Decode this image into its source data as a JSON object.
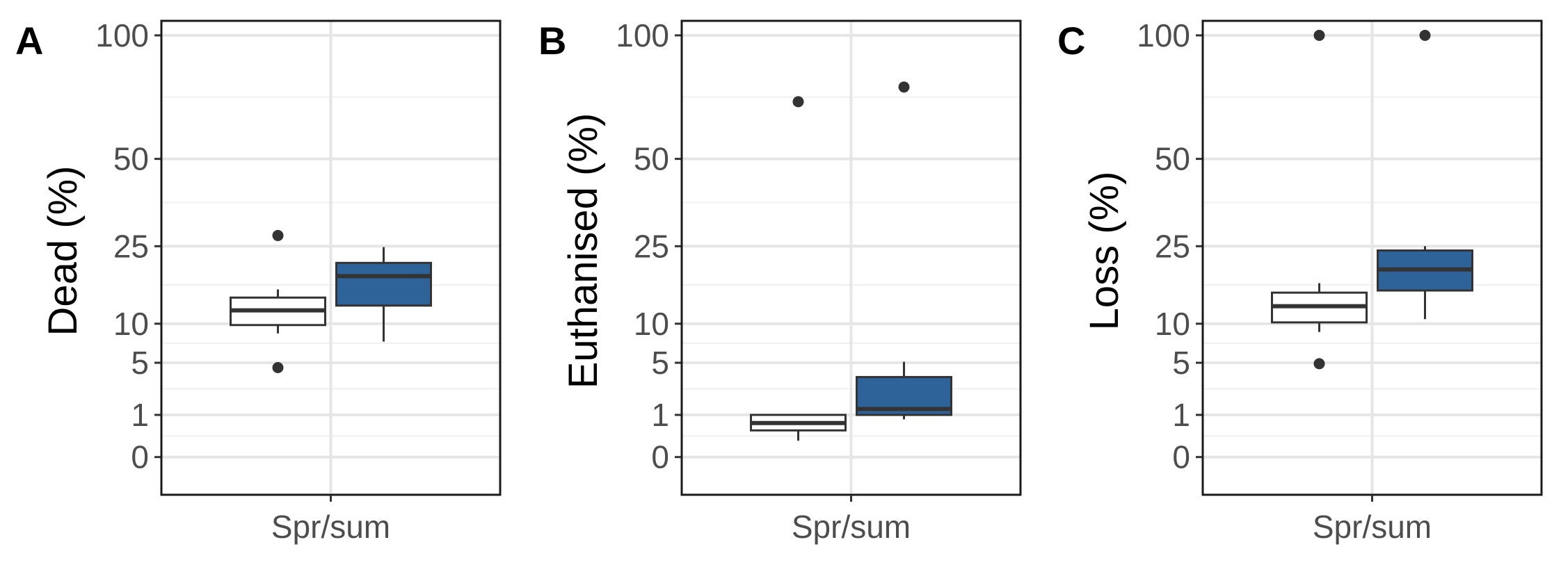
{
  "chart_data": [
    {
      "type": "box",
      "panel_label": "A",
      "ylabel": "Dead (%)",
      "categories": [
        "Spr/sum"
      ],
      "y_ticks": [
        0,
        1,
        5,
        10,
        25,
        50,
        100
      ],
      "y_tick_labels": [
        "0",
        "1",
        "5",
        "10",
        "25",
        "50",
        "100"
      ],
      "y_scale": "sqrt",
      "ylim": [
        -0.8,
        107
      ],
      "grid": true,
      "boxes": [
        {
          "group": 1,
          "fill": "#ffffff",
          "lower_whisker": 8.6,
          "q1": 9.8,
          "median": 12.1,
          "q3": 14.3,
          "upper_whisker": 15.8,
          "outliers": [
            27.6,
            4.5
          ]
        },
        {
          "group": 2,
          "fill": "#2e6399",
          "lower_whisker": 7.5,
          "q1": 12.9,
          "median": 18.4,
          "q3": 21.2,
          "upper_whisker": 24.8,
          "outliers": []
        }
      ]
    },
    {
      "type": "box",
      "panel_label": "B",
      "ylabel": "Euthanised (%)",
      "categories": [
        "Spr/sum"
      ],
      "y_ticks": [
        0,
        1,
        5,
        10,
        25,
        50,
        100
      ],
      "y_tick_labels": [
        "0",
        "1",
        "5",
        "10",
        "25",
        "50",
        "100"
      ],
      "y_scale": "sqrt",
      "ylim": [
        -0.8,
        107
      ],
      "grid": true,
      "boxes": [
        {
          "group": 1,
          "fill": "#ffffff",
          "lower_whisker": 0.15,
          "q1": 0.4,
          "median": 0.65,
          "q3": 1.0,
          "upper_whisker": 1.0,
          "outliers": [
            71
          ]
        },
        {
          "group": 2,
          "fill": "#2e6399",
          "lower_whisker": 0.8,
          "q1": 1.0,
          "median": 1.3,
          "q3": 3.6,
          "upper_whisker": 5.1,
          "outliers": [
            77
          ]
        }
      ]
    },
    {
      "type": "box",
      "panel_label": "C",
      "ylabel": "Loss (%)",
      "categories": [
        "Spr/sum"
      ],
      "y_ticks": [
        0,
        1,
        5,
        10,
        25,
        50,
        100
      ],
      "y_tick_labels": [
        "0",
        "1",
        "5",
        "10",
        "25",
        "50",
        "100"
      ],
      "y_scale": "sqrt",
      "ylim": [
        -0.8,
        107
      ],
      "grid": true,
      "boxes": [
        {
          "group": 1,
          "fill": "#ffffff",
          "lower_whisker": 8.8,
          "q1": 10.2,
          "median": 12.8,
          "q3": 15.2,
          "upper_whisker": 17.0,
          "outliers": [
            100,
            4.9
          ]
        },
        {
          "group": 2,
          "fill": "#2e6399",
          "lower_whisker": 10.7,
          "q1": 15.6,
          "median": 19.8,
          "q3": 24.0,
          "upper_whisker": 25.0,
          "outliers": [
            100
          ]
        }
      ]
    }
  ]
}
